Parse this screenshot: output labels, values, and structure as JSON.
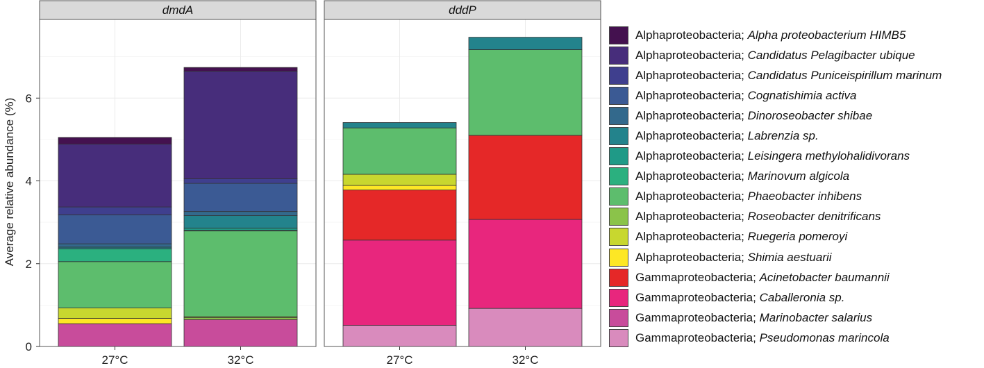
{
  "chart_data": {
    "type": "bar",
    "stacked": true,
    "ylabel": "Average relative abundance (%)",
    "ylim": [
      0,
      7.9
    ],
    "yticks": [
      0,
      2,
      4,
      6
    ],
    "grid": true,
    "legend_position": "right",
    "categories": [
      "27°C",
      "32°C"
    ],
    "panels": [
      {
        "title": "dmdA",
        "bars": [
          {
            "category": "27°C",
            "segments": [
              {
                "taxon": "Marinobacter salarius",
                "value": 0.55
              },
              {
                "taxon": "Shimia aestuarii",
                "value": 0.13
              },
              {
                "taxon": "Ruegeria pomeroyi",
                "value": 0.25
              },
              {
                "taxon": "Phaeobacter inhibens",
                "value": 1.12
              },
              {
                "taxon": "Marinovum algicola",
                "value": 0.31
              },
              {
                "taxon": "Labrenzia sp.",
                "value": 0.04
              },
              {
                "taxon": "Dinoroseobacter shibae",
                "value": 0.08
              },
              {
                "taxon": "Cognatishimia activa",
                "value": 0.7
              },
              {
                "taxon": "Candidatus Puniceispirillum marinum",
                "value": 0.19
              },
              {
                "taxon": "Candidatus Pelagibacter ubique",
                "value": 1.52
              },
              {
                "taxon": "Alpha proteobacterium HIMB5",
                "value": 0.16
              }
            ]
          },
          {
            "category": "32°C",
            "segments": [
              {
                "taxon": "Marinobacter salarius",
                "value": 0.65
              },
              {
                "taxon": "Roseobacter denitrificans",
                "value": 0.05
              },
              {
                "taxon": "Ruegeria pomeroyi",
                "value": 0.02
              },
              {
                "taxon": "Phaeobacter inhibens",
                "value": 2.07
              },
              {
                "taxon": "Marinovum algicola",
                "value": 0.02
              },
              {
                "taxon": "Leisingera methylohalidivorans",
                "value": 0.05
              },
              {
                "taxon": "Labrenzia sp.",
                "value": 0.3
              },
              {
                "taxon": "Dinoroseobacter shibae",
                "value": 0.1
              },
              {
                "taxon": "Cognatishimia activa",
                "value": 0.68
              },
              {
                "taxon": "Candidatus Puniceispirillum marinum",
                "value": 0.11
              },
              {
                "taxon": "Candidatus Pelagibacter ubique",
                "value": 2.6
              },
              {
                "taxon": "Alpha proteobacterium HIMB5",
                "value": 0.09
              }
            ]
          }
        ]
      },
      {
        "title": "dddP",
        "bars": [
          {
            "category": "27°C",
            "segments": [
              {
                "taxon": "Pseudomonas marincola",
                "value": 0.51
              },
              {
                "taxon": "Caballeronia sp.",
                "value": 2.06
              },
              {
                "taxon": "Acinetobacter baumannii",
                "value": 1.21
              },
              {
                "taxon": "Shimia aestuarii",
                "value": 0.11
              },
              {
                "taxon": "Ruegeria pomeroyi",
                "value": 0.27
              },
              {
                "taxon": "Phaeobacter inhibens",
                "value": 1.12
              },
              {
                "taxon": "Labrenzia sp.",
                "value": 0.13
              }
            ]
          },
          {
            "category": "32°C",
            "segments": [
              {
                "taxon": "Pseudomonas marincola",
                "value": 0.92
              },
              {
                "taxon": "Caballeronia sp.",
                "value": 2.15
              },
              {
                "taxon": "Acinetobacter baumannii",
                "value": 2.03
              },
              {
                "taxon": "Phaeobacter inhibens",
                "value": 2.07
              },
              {
                "taxon": "Labrenzia sp.",
                "value": 0.3
              }
            ]
          }
        ]
      }
    ],
    "legend": [
      {
        "class": "Alphaproteobacteria;",
        "taxon": "Alpha proteobacterium HIMB5",
        "color": "#44114f"
      },
      {
        "class": "Alphaproteobacteria;",
        "taxon": "Candidatus Pelagibacter ubique",
        "color": "#472d7b"
      },
      {
        "class": "Alphaproteobacteria;",
        "taxon": "Candidatus Puniceispirillum marinum",
        "color": "#3f3f8e"
      },
      {
        "class": "Alphaproteobacteria;",
        "taxon": "Cognatishimia activa",
        "color": "#3b5a94"
      },
      {
        "class": "Alphaproteobacteria;",
        "taxon": "Dinoroseobacter shibae",
        "color": "#33698c"
      },
      {
        "class": "Alphaproteobacteria;",
        "taxon": "Labrenzia sp.",
        "color": "#23838c"
      },
      {
        "class": "Alphaproteobacteria;",
        "taxon": "Leisingera methylohalidivorans",
        "color": "#1f9a87"
      },
      {
        "class": "Alphaproteobacteria;",
        "taxon": "Marinovum algicola",
        "color": "#2bb07f"
      },
      {
        "class": "Alphaproteobacteria;",
        "taxon": "Phaeobacter inhibens",
        "color": "#5dbd6d"
      },
      {
        "class": "Alphaproteobacteria;",
        "taxon": "Roseobacter denitrificans",
        "color": "#8bc34a"
      },
      {
        "class": "Alphaproteobacteria;",
        "taxon": "Ruegeria pomeroyi",
        "color": "#c8d72f"
      },
      {
        "class": "Alphaproteobacteria;",
        "taxon": "Shimia aestuarii",
        "color": "#fde725"
      },
      {
        "class": "Gammaproteobacteria;",
        "taxon": "Acinetobacter baumannii",
        "color": "#e52828"
      },
      {
        "class": "Gammaproteobacteria;",
        "taxon": "Caballeronia sp.",
        "color": "#e8267d"
      },
      {
        "class": "Gammaproteobacteria;",
        "taxon": "Marinobacter salarius",
        "color": "#c84c9b"
      },
      {
        "class": "Gammaproteobacteria;",
        "taxon": "Pseudomonas marincola",
        "color": "#d98bbd"
      }
    ]
  }
}
